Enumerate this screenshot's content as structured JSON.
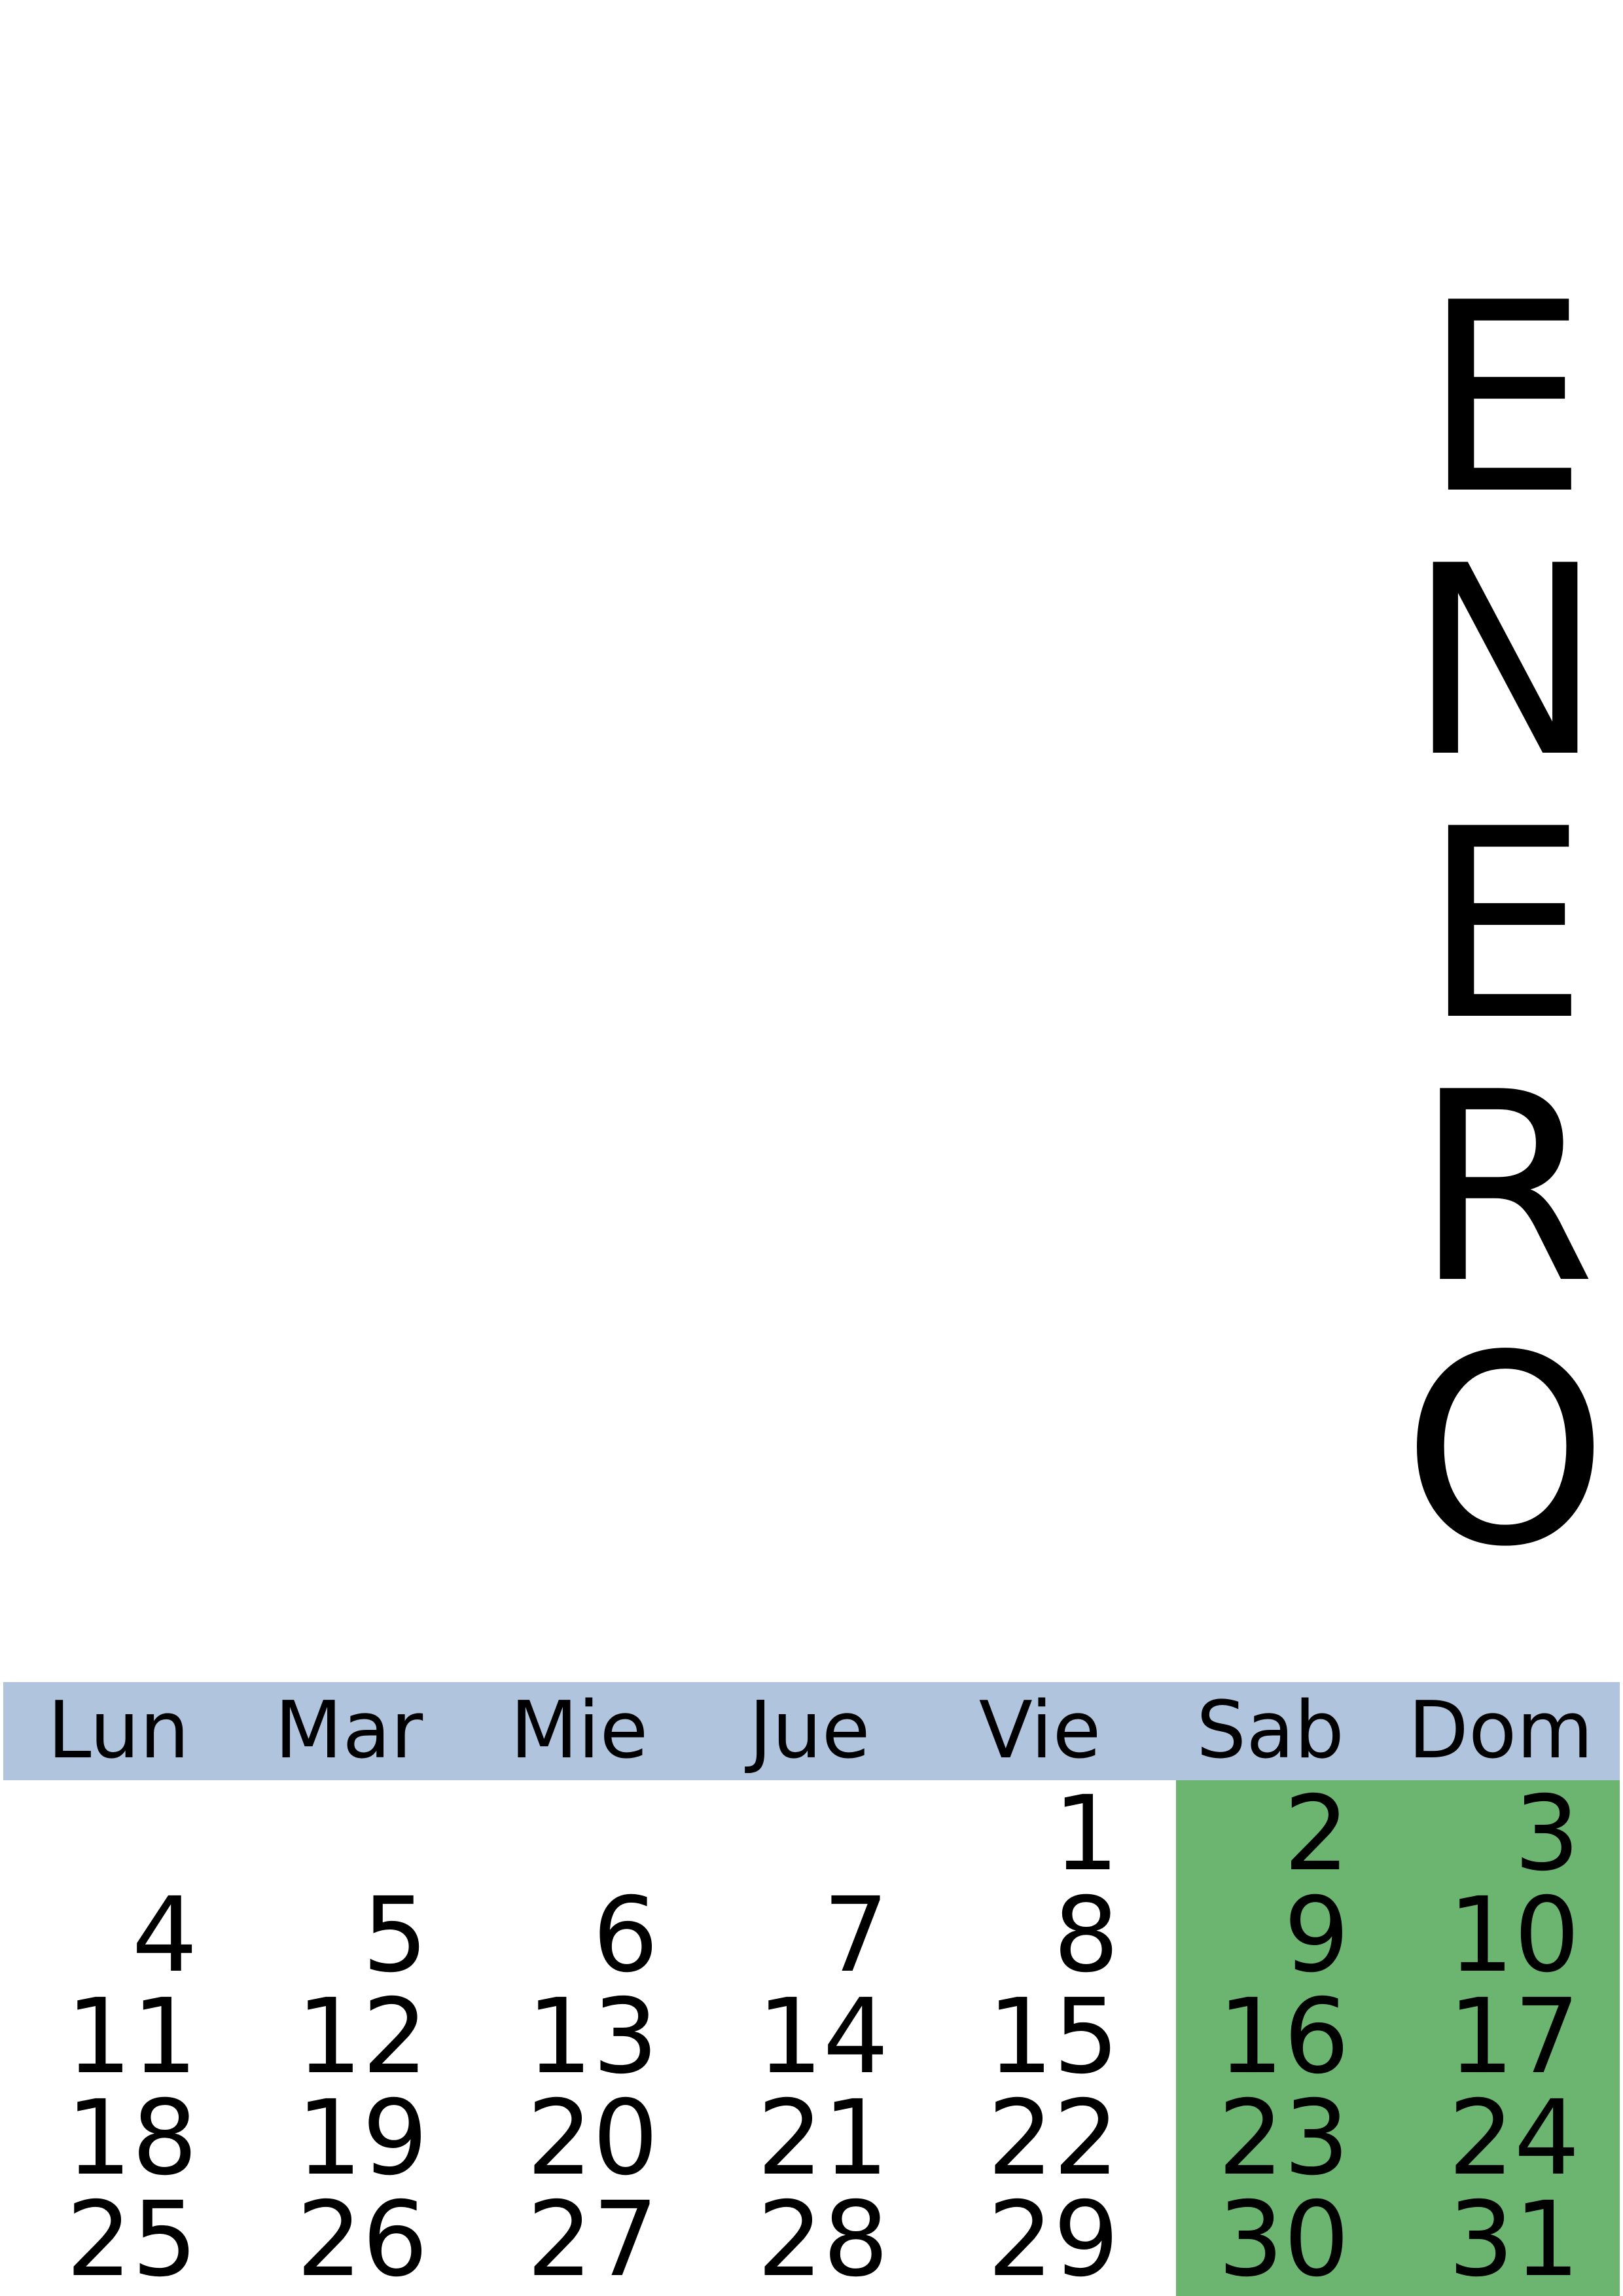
{
  "month": {
    "letters": [
      "E",
      "N",
      "E",
      "R",
      "O"
    ]
  },
  "weekdays": [
    "Lun",
    "Mar",
    "Mie",
    "Jue",
    "Vie",
    "Sab",
    "Dom"
  ],
  "weeks": [
    [
      "",
      "",
      "",
      "",
      "1",
      "2",
      "3"
    ],
    [
      "4",
      "5",
      "6",
      "7",
      "8",
      "9",
      "10"
    ],
    [
      "11",
      "12",
      "13",
      "14",
      "15",
      "16",
      "17"
    ],
    [
      "18",
      "19",
      "20",
      "21",
      "22",
      "23",
      "24"
    ],
    [
      "25",
      "26",
      "27",
      "28",
      "29",
      "30",
      "31"
    ]
  ],
  "colors": {
    "header_bg": "#b0c4de",
    "weekend_bg": "#6bb571"
  }
}
